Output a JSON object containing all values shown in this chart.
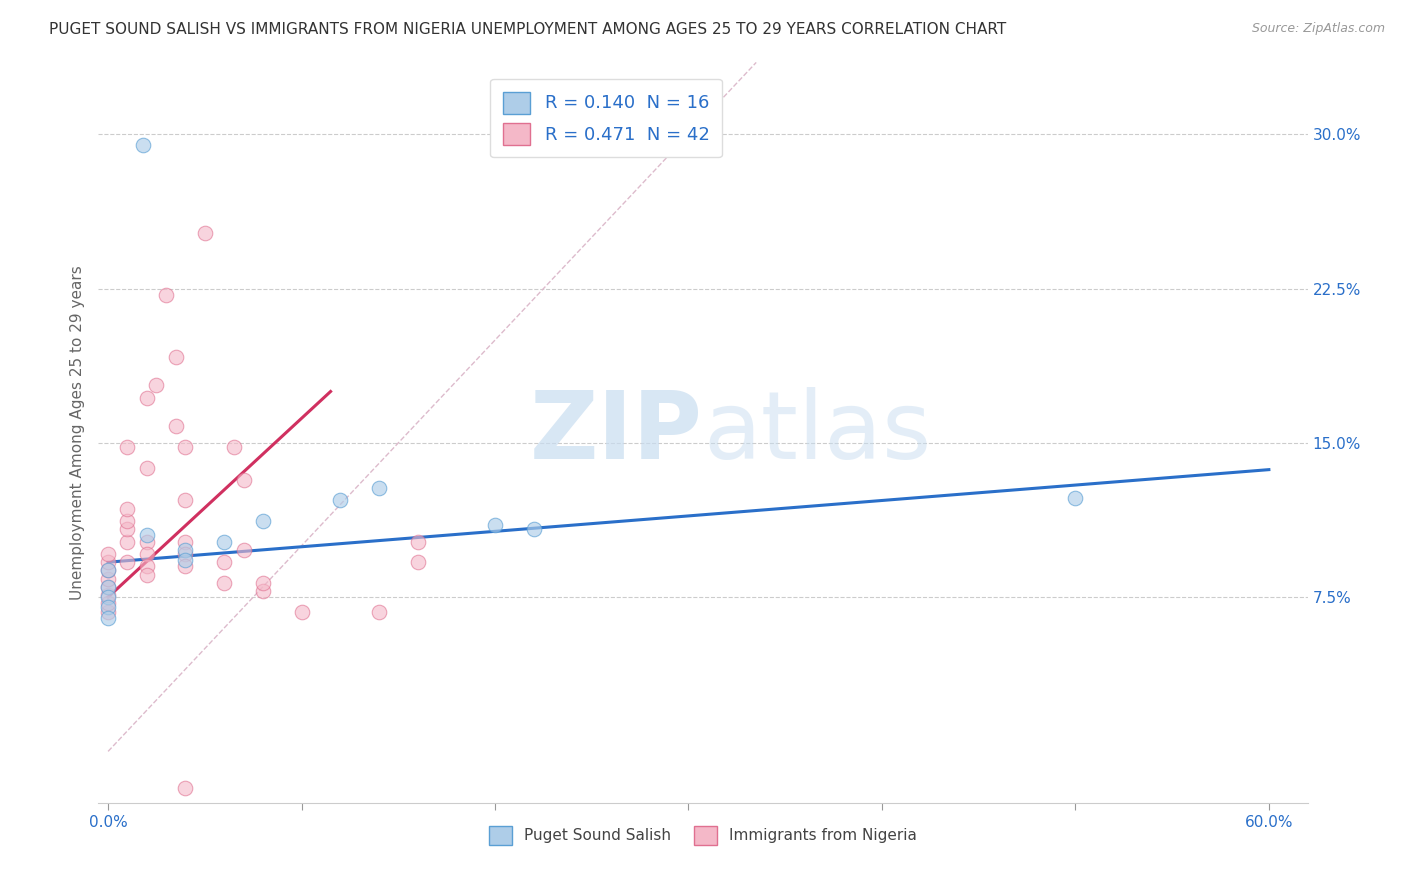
{
  "title": "PUGET SOUND SALISH VS IMMIGRANTS FROM NIGERIA UNEMPLOYMENT AMONG AGES 25 TO 29 YEARS CORRELATION CHART",
  "source": "Source: ZipAtlas.com",
  "ylabel": "Unemployment Among Ages 25 to 29 years",
  "xlim": [
    -0.005,
    0.62
  ],
  "ylim": [
    -0.025,
    0.335
  ],
  "ytick_vals": [
    0.075,
    0.15,
    0.225,
    0.3
  ],
  "ytick_labels": [
    "7.5%",
    "15.0%",
    "22.5%",
    "30.0%"
  ],
  "xtick_vals": [
    0.0,
    0.1,
    0.2,
    0.3,
    0.4,
    0.5,
    0.6
  ],
  "xtick_labels_shown": {
    "0.0": "0.0%",
    "0.6": "60.0%"
  },
  "legend_entries": [
    {
      "label_r": "R = 0.140",
      "label_n": "N = 16",
      "facecolor": "#aecde8",
      "edgecolor": "#5a9fd4"
    },
    {
      "label_r": "R = 0.471",
      "label_n": "N = 42",
      "facecolor": "#f4b8c8",
      "edgecolor": "#e07090"
    }
  ],
  "legend_bottom": [
    {
      "label": "Puget Sound Salish",
      "facecolor": "#aecde8",
      "edgecolor": "#5a9fd4"
    },
    {
      "label": "Immigrants from Nigeria",
      "facecolor": "#f4b8c8",
      "edgecolor": "#e07090"
    }
  ],
  "blue_scatter": [
    [
      0.018,
      0.295
    ],
    [
      0.0,
      0.088
    ],
    [
      0.0,
      0.08
    ],
    [
      0.0,
      0.075
    ],
    [
      0.0,
      0.07
    ],
    [
      0.0,
      0.065
    ],
    [
      0.02,
      0.105
    ],
    [
      0.04,
      0.098
    ],
    [
      0.04,
      0.093
    ],
    [
      0.06,
      0.102
    ],
    [
      0.08,
      0.112
    ],
    [
      0.12,
      0.122
    ],
    [
      0.14,
      0.128
    ],
    [
      0.2,
      0.11
    ],
    [
      0.22,
      0.108
    ],
    [
      0.5,
      0.123
    ]
  ],
  "pink_scatter": [
    [
      0.0,
      0.068
    ],
    [
      0.0,
      0.072
    ],
    [
      0.0,
      0.076
    ],
    [
      0.0,
      0.08
    ],
    [
      0.0,
      0.084
    ],
    [
      0.0,
      0.088
    ],
    [
      0.0,
      0.092
    ],
    [
      0.0,
      0.096
    ],
    [
      0.01,
      0.092
    ],
    [
      0.01,
      0.102
    ],
    [
      0.01,
      0.108
    ],
    [
      0.01,
      0.112
    ],
    [
      0.01,
      0.118
    ],
    [
      0.01,
      0.148
    ],
    [
      0.02,
      0.172
    ],
    [
      0.02,
      0.138
    ],
    [
      0.02,
      0.102
    ],
    [
      0.02,
      0.096
    ],
    [
      0.02,
      0.09
    ],
    [
      0.02,
      0.086
    ],
    [
      0.025,
      0.178
    ],
    [
      0.03,
      0.222
    ],
    [
      0.035,
      0.192
    ],
    [
      0.035,
      0.158
    ],
    [
      0.04,
      0.148
    ],
    [
      0.04,
      0.122
    ],
    [
      0.04,
      0.102
    ],
    [
      0.04,
      0.096
    ],
    [
      0.04,
      0.09
    ],
    [
      0.05,
      0.252
    ],
    [
      0.06,
      0.082
    ],
    [
      0.06,
      0.092
    ],
    [
      0.065,
      0.148
    ],
    [
      0.07,
      0.132
    ],
    [
      0.07,
      0.098
    ],
    [
      0.08,
      0.078
    ],
    [
      0.08,
      0.082
    ],
    [
      0.1,
      0.068
    ],
    [
      0.14,
      0.068
    ],
    [
      0.16,
      0.102
    ],
    [
      0.16,
      0.092
    ],
    [
      0.04,
      -0.018
    ]
  ],
  "blue_line": {
    "x": [
      0.0,
      0.6
    ],
    "y": [
      0.092,
      0.137
    ]
  },
  "pink_line": {
    "x": [
      0.0,
      0.115
    ],
    "y": [
      0.075,
      0.175
    ]
  },
  "diagonal_line": {
    "x": [
      0.0,
      0.335
    ],
    "y": [
      0.0,
      0.335
    ]
  },
  "watermark_zip": "ZIP",
  "watermark_atlas": "atlas",
  "background_color": "#ffffff",
  "grid_color": "#cccccc",
  "scatter_size": 110,
  "blue_fill": "#aecde8",
  "blue_edge": "#5a9fd4",
  "pink_fill": "#f4b8c8",
  "pink_edge": "#e07090",
  "blue_line_color": "#2a6fc9",
  "pink_line_color": "#d03060",
  "legend_color": "#2a6fc9",
  "title_fontsize": 11,
  "axis_label_fontsize": 11,
  "tick_fontsize": 11,
  "source_fontsize": 9
}
